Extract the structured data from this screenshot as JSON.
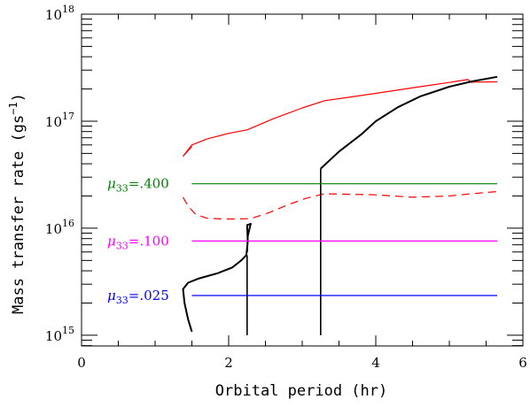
{
  "chart_data": {
    "type": "line",
    "xlabel": "Orbital period (hr)",
    "ylabel": {
      "main": "Mass transfer rate (gs",
      "sup": "−1",
      "close": ")"
    },
    "xlim": [
      0,
      6
    ],
    "ylim_log10": [
      14.9,
      18
    ],
    "x_scale": "linear",
    "y_scale": "log",
    "x_ticks": [
      {
        "value": 0,
        "label": "0"
      },
      {
        "value": 2,
        "label": "2"
      },
      {
        "value": 4,
        "label": "4"
      },
      {
        "value": 6,
        "label": "6"
      }
    ],
    "y_decades": [
      {
        "exp": 15,
        "base": "10",
        "sup": "15"
      },
      {
        "exp": 16,
        "base": "10",
        "sup": "16"
      },
      {
        "exp": 17,
        "base": "10",
        "sup": "17"
      },
      {
        "exp": 18,
        "base": "10",
        "sup": "18"
      }
    ],
    "grid": false,
    "legend": "none",
    "series": [
      {
        "color": "#ff0000",
        "style": "solid",
        "points": [
          [
            1.38,
            4.7e+16
          ],
          [
            1.5,
            6e+16
          ],
          [
            1.7,
            6.8e+16
          ],
          [
            2.0,
            7.7e+16
          ],
          [
            2.25,
            8.3e+16
          ],
          [
            2.6,
            1.05e+17
          ],
          [
            3.0,
            1.33e+17
          ],
          [
            3.3,
            1.55e+17
          ],
          [
            4.0,
            1.82e+17
          ],
          [
            4.6,
            2.1e+17
          ],
          [
            5.0,
            2.3e+17
          ],
          [
            5.25,
            2.45e+17
          ],
          [
            5.3,
            2.3e+17
          ],
          [
            5.32,
            2.32e+17
          ],
          [
            5.65,
            2.33e+17
          ]
        ]
      },
      {
        "color": "#ff0000",
        "style": "solid",
        "points": [
          [
            1.38,
            4.7e+16
          ],
          [
            1.5,
            5.8e+16
          ]
        ]
      },
      {
        "color": "#ff0000",
        "style": "dashed",
        "points": [
          [
            1.38,
            1.95e+16
          ],
          [
            1.45,
            1.6e+16
          ],
          [
            1.55,
            1.35e+16
          ],
          [
            1.7,
            1.24e+16
          ],
          [
            1.9,
            1.22e+16
          ],
          [
            2.1,
            1.22e+16
          ],
          [
            2.3,
            1.23e+16
          ],
          [
            2.55,
            1.4e+16
          ],
          [
            2.8,
            1.65e+16
          ],
          [
            3.05,
            1.9e+16
          ],
          [
            3.3,
            2.1e+16
          ],
          [
            3.6,
            2.08e+16
          ],
          [
            4.0,
            2.05e+16
          ],
          [
            4.5,
            1.95e+16
          ],
          [
            5.0,
            2e+16
          ],
          [
            5.3,
            2.1e+16
          ],
          [
            5.65,
            2.2e+16
          ]
        ]
      },
      {
        "color": "#000000",
        "style": "solid",
        "width": 2,
        "points": [
          [
            1.5,
            1080000000000000.0
          ],
          [
            1.45,
            1400000000000000.0
          ],
          [
            1.4,
            2000000000000000.0
          ],
          [
            1.38,
            2700000000000000.0
          ],
          [
            1.45,
            3100000000000000.0
          ],
          [
            1.6,
            3400000000000000.0
          ],
          [
            1.85,
            3800000000000000.0
          ],
          [
            2.05,
            4300000000000000.0
          ],
          [
            2.17,
            5000000000000000.0
          ],
          [
            2.24,
            5600000000000000.0
          ],
          [
            2.25,
            6500000000000000.0
          ],
          [
            2.26,
            7600000000000000.0
          ],
          [
            2.25,
            1.07e+16
          ],
          [
            2.3,
            1.1e+16
          ],
          [
            2.26,
            8500000000000000.0
          ],
          [
            2.25,
            6000000000000000.0
          ]
        ]
      },
      {
        "color": "#000000",
        "style": "solid",
        "width": 1.6,
        "points": [
          [
            2.25,
            1000000000000000.0
          ],
          [
            2.25,
            5600000000000000.0
          ]
        ]
      },
      {
        "color": "#000000",
        "style": "solid",
        "width": 1.6,
        "points": [
          [
            3.25,
            1000000000000000.0
          ],
          [
            3.25,
            3.6e+16
          ]
        ]
      },
      {
        "color": "#000000",
        "style": "solid",
        "width": 2,
        "points": [
          [
            3.25,
            3.6e+16
          ],
          [
            3.5,
            5.2e+16
          ],
          [
            3.8,
            7.5e+16
          ],
          [
            4.0,
            1e+17
          ],
          [
            4.3,
            1.35e+17
          ],
          [
            4.6,
            1.7e+17
          ],
          [
            5.0,
            2.1e+17
          ],
          [
            5.3,
            2.35e+17
          ],
          [
            5.65,
            2.6e+17
          ]
        ]
      },
      {
        "color": "#008000",
        "style": "solid",
        "points": [
          [
            1.5,
            2.6e+16
          ],
          [
            5.65,
            2.6e+16
          ]
        ]
      },
      {
        "color": "#ff00ff",
        "style": "solid",
        "points": [
          [
            1.5,
            7600000000000000.0
          ],
          [
            5.65,
            7600000000000000.0
          ]
        ]
      },
      {
        "color": "#0000ff",
        "style": "solid",
        "points": [
          [
            1.5,
            2350000000000000.0
          ],
          [
            5.65,
            2350000000000000.0
          ]
        ]
      }
    ],
    "annotations": [
      {
        "mu": "μ",
        "sub": "33",
        "value": "=.400",
        "color": "#008000",
        "x": 0.35,
        "y": 2.6e+16
      },
      {
        "mu": "μ",
        "sub": "33",
        "value": "=.100",
        "color": "#ff00ff",
        "x": 0.35,
        "y": 7600000000000000.0
      },
      {
        "mu": "μ",
        "sub": "33",
        "value": "=.025",
        "color": "#0000ff",
        "x": 0.35,
        "y": 2350000000000000.0
      }
    ]
  }
}
